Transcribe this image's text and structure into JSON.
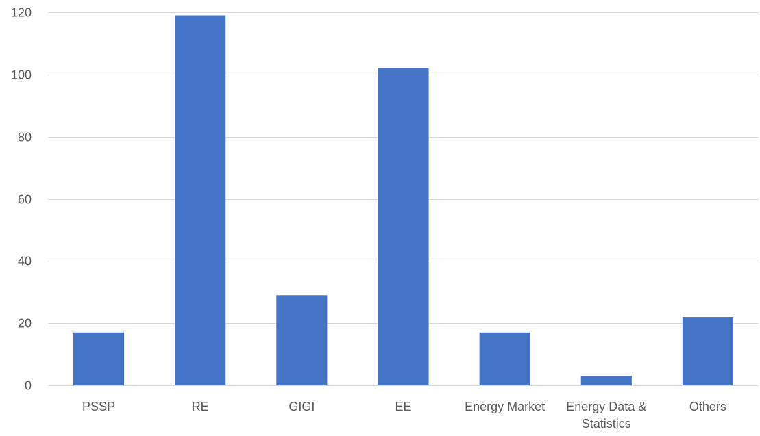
{
  "chart_data": {
    "type": "bar",
    "categories": [
      [
        "PSSP"
      ],
      [
        "RE"
      ],
      [
        "GIGI"
      ],
      [
        "EE"
      ],
      [
        "Energy Market"
      ],
      [
        "Energy Data &",
        "Statistics"
      ],
      [
        "Others"
      ]
    ],
    "values": [
      17,
      119,
      29,
      102,
      17,
      3,
      22
    ],
    "ylim": [
      0,
      120
    ],
    "yticks": [
      0,
      20,
      40,
      60,
      80,
      100,
      120
    ],
    "grid": true,
    "legend": "none",
    "title": "",
    "xlabel": "",
    "ylabel": "",
    "colors": {
      "bar": "#4472c4",
      "grid": "#d9d9d9",
      "text": "#595959"
    }
  }
}
